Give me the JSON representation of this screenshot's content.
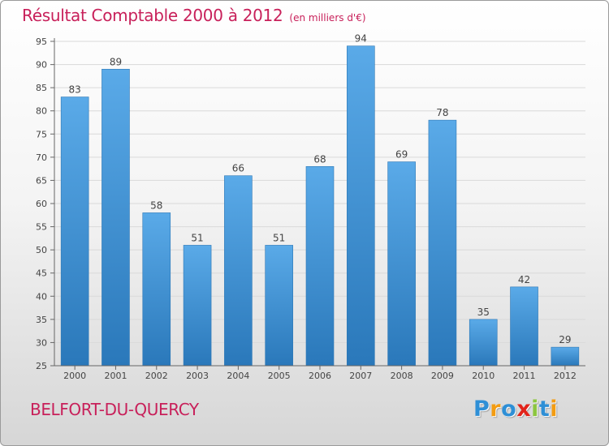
{
  "chart_data": {
    "type": "bar",
    "title": "Résultat Comptable 2000 à 2012",
    "subtitle": "(en milliers d'€)",
    "categories": [
      "2000",
      "2001",
      "2002",
      "2003",
      "2004",
      "2005",
      "2006",
      "2007",
      "2008",
      "2009",
      "2010",
      "2011",
      "2012"
    ],
    "values": [
      83,
      89,
      58,
      51,
      66,
      51,
      68,
      94,
      69,
      78,
      35,
      42,
      29
    ],
    "ylim": [
      25,
      95
    ],
    "yticks": [
      25,
      30,
      35,
      40,
      45,
      50,
      55,
      60,
      65,
      70,
      75,
      80,
      85,
      90,
      95
    ],
    "xlabel": "",
    "ylabel": "",
    "grid": true
  },
  "footer": {
    "commune": "BELFORT-DU-QUERCY",
    "logo_letters": [
      "P",
      "r",
      "o",
      "x",
      "i",
      "t",
      "i"
    ],
    "logo_colors": [
      "#2e8fd6",
      "#f39c12",
      "#2e8fd6",
      "#e2231a",
      "#8cc63f",
      "#2e8fd6",
      "#f39c12"
    ]
  },
  "colors": {
    "accent": "#c8205a",
    "bar_top": "#5aaae8",
    "bar_bottom": "#2a78ba"
  }
}
